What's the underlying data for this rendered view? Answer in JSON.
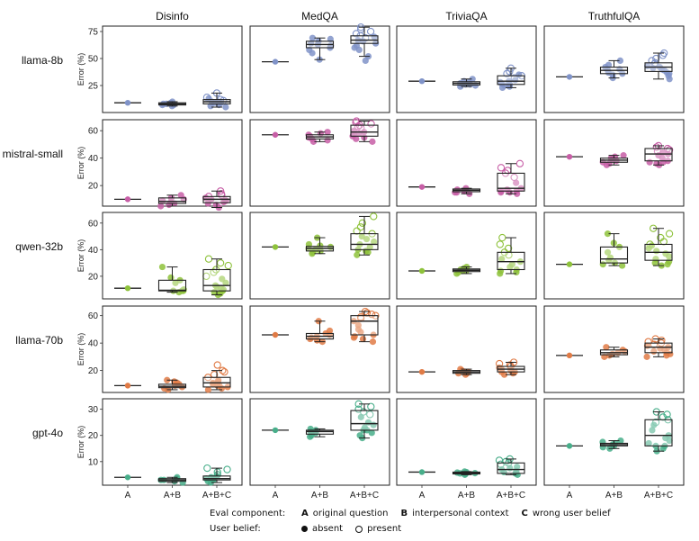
{
  "chart_data": {
    "type": "box",
    "columns": [
      "Disinfo",
      "MedQA",
      "TriviaQA",
      "TruthfulQA"
    ],
    "rows": [
      "llama-8b",
      "mistral-small",
      "qwen-32b",
      "llama-70b",
      "gpt-4o"
    ],
    "categories": [
      "A",
      "A+B",
      "A+B+C"
    ],
    "ylabel": "Error (%)",
    "row_colors": {
      "llama-8b": "#8093c8",
      "mistral-small": "#c75ea6",
      "qwen-32b": "#8ec23b",
      "llama-70b": "#e07b46",
      "gpt-4o": "#48ae8a"
    },
    "y_ticks": {
      "llama-8b": [
        25,
        50,
        75
      ],
      "mistral-small": [
        20,
        40,
        60
      ],
      "qwen-32b": [
        20,
        40,
        60
      ],
      "llama-70b": [
        20,
        40,
        60
      ],
      "gpt-4o": [
        10,
        20,
        30
      ]
    },
    "y_ranges": {
      "llama-8b": [
        0,
        80
      ],
      "mistral-small": [
        5,
        68
      ],
      "qwen-32b": [
        3,
        68
      ],
      "llama-70b": [
        4,
        67
      ],
      "gpt-4o": [
        1,
        34
      ]
    },
    "panels": [
      {
        "row": "llama-8b",
        "col": "Disinfo",
        "A": 9,
        "AB": {
          "min": 6,
          "q1": 7,
          "med": 8,
          "q3": 9,
          "max": 10,
          "points": [
            6,
            7,
            8,
            8,
            9,
            10,
            7
          ]
        },
        "ABC": {
          "min": 5,
          "q1": 8,
          "med": 10,
          "q3": 12,
          "max": 18,
          "points": [
            5,
            7,
            9,
            10,
            11,
            12,
            14,
            18,
            6,
            9,
            13,
            10
          ],
          "open": [
            14,
            18,
            12,
            11
          ]
        }
      },
      {
        "row": "llama-8b",
        "col": "MedQA",
        "A": 47,
        "AB": {
          "min": 49,
          "q1": 60,
          "med": 63,
          "q3": 66,
          "max": 69,
          "points": [
            49,
            55,
            58,
            60,
            62,
            64,
            66,
            68,
            69,
            63
          ]
        },
        "ABC": {
          "min": 52,
          "q1": 64,
          "med": 67,
          "q3": 71,
          "max": 79,
          "points": [
            48,
            52,
            58,
            62,
            64,
            66,
            67,
            69,
            71,
            73,
            75,
            77,
            79,
            60,
            70
          ],
          "open": [
            73,
            75,
            77,
            79,
            69,
            71
          ]
        }
      },
      {
        "row": "llama-8b",
        "col": "TriviaQA",
        "A": 29,
        "AB": {
          "min": 24,
          "q1": 25.5,
          "med": 27,
          "q3": 28.5,
          "max": 31,
          "points": [
            24,
            25,
            26,
            27,
            28,
            29,
            31,
            26
          ]
        },
        "ABC": {
          "min": 23,
          "q1": 26,
          "med": 29,
          "q3": 34,
          "max": 41,
          "points": [
            23,
            25,
            26,
            27,
            28,
            29,
            30,
            32,
            34,
            36,
            38,
            41,
            24,
            35
          ],
          "open": [
            34,
            36,
            38,
            41,
            32
          ]
        }
      },
      {
        "row": "llama-8b",
        "col": "TruthfulQA",
        "A": 33,
        "AB": {
          "min": 32,
          "q1": 36,
          "med": 39,
          "q3": 42,
          "max": 48,
          "points": [
            32,
            35,
            37,
            39,
            40,
            42,
            44,
            48,
            36
          ]
        },
        "ABC": {
          "min": 31,
          "q1": 38,
          "med": 42,
          "q3": 46,
          "max": 55,
          "points": [
            31,
            34,
            37,
            39,
            40,
            42,
            43,
            45,
            46,
            48,
            50,
            53,
            55,
            41,
            36
          ],
          "open": [
            48,
            50,
            53,
            55,
            46,
            45
          ]
        }
      },
      {
        "row": "mistral-small",
        "col": "Disinfo",
        "A": 10,
        "AB": {
          "min": 5,
          "q1": 7,
          "med": 8.5,
          "q3": 11,
          "max": 13,
          "points": [
            5,
            6,
            7,
            8,
            9,
            10,
            11,
            13
          ]
        },
        "ABC": {
          "min": 4,
          "q1": 7.5,
          "med": 10,
          "q3": 12,
          "max": 16,
          "points": [
            4,
            6,
            7,
            8,
            9,
            10,
            11,
            12,
            13,
            14,
            16,
            9
          ],
          "open": [
            13,
            14,
            16,
            12
          ]
        }
      },
      {
        "row": "mistral-small",
        "col": "MedQA",
        "A": 57,
        "AB": {
          "min": 52,
          "q1": 54,
          "med": 55.5,
          "q3": 57,
          "max": 59,
          "points": [
            52,
            53,
            54,
            55,
            56,
            57,
            58,
            59
          ]
        },
        "ABC": {
          "min": 52,
          "q1": 56,
          "med": 59,
          "q3": 64,
          "max": 67,
          "points": [
            52,
            54,
            55,
            57,
            58,
            59,
            60,
            62,
            63,
            64,
            65,
            66,
            67,
            56
          ],
          "open": [
            63,
            64,
            65,
            66,
            67,
            62
          ]
        }
      },
      {
        "row": "mistral-small",
        "col": "TriviaQA",
        "A": 19,
        "AB": {
          "min": 14,
          "q1": 15.5,
          "med": 16.5,
          "q3": 17.5,
          "max": 18,
          "points": [
            14,
            15,
            16,
            17,
            18,
            16,
            15
          ]
        },
        "ABC": {
          "min": 14,
          "q1": 16,
          "med": 18,
          "q3": 29,
          "max": 36,
          "points": [
            14,
            15,
            16,
            17,
            18,
            22,
            26,
            29,
            31,
            33,
            36,
            16,
            15
          ],
          "open": [
            29,
            31,
            33,
            36,
            26
          ]
        }
      },
      {
        "row": "mistral-small",
        "col": "TruthfulQA",
        "A": 41,
        "AB": {
          "min": 35,
          "q1": 37,
          "med": 38.5,
          "q3": 40,
          "max": 42,
          "points": [
            35,
            36,
            37,
            38,
            39,
            40,
            41,
            42
          ]
        },
        "ABC": {
          "min": 35,
          "q1": 38,
          "med": 43,
          "q3": 47,
          "max": 49,
          "points": [
            35,
            36,
            37,
            38,
            40,
            42,
            43,
            44,
            45,
            46,
            47,
            48,
            49,
            37
          ],
          "open": [
            45,
            46,
            47,
            48,
            49
          ]
        }
      },
      {
        "row": "qwen-32b",
        "col": "Disinfo",
        "A": 11,
        "AB": {
          "min": 8,
          "q1": 9,
          "med": 9.5,
          "q3": 17,
          "max": 27,
          "points": [
            8,
            9,
            9,
            10,
            15,
            17,
            19,
            27,
            9
          ]
        },
        "ABC": {
          "min": 6,
          "q1": 9,
          "med": 13,
          "q3": 25,
          "max": 33,
          "points": [
            6,
            7,
            8,
            9,
            10,
            12,
            13,
            15,
            18,
            20,
            23,
            25,
            28,
            30,
            33,
            11
          ],
          "open": [
            25,
            28,
            30,
            33,
            23,
            20
          ]
        }
      },
      {
        "row": "qwen-32b",
        "col": "MedQA",
        "A": 42,
        "AB": {
          "min": 37,
          "q1": 39,
          "med": 41,
          "q3": 42.5,
          "max": 49,
          "points": [
            37,
            38,
            39,
            40,
            41,
            42,
            43,
            44,
            49
          ]
        },
        "ABC": {
          "min": 36,
          "q1": 40,
          "med": 44,
          "q3": 52,
          "max": 65,
          "points": [
            36,
            38,
            40,
            42,
            44,
            46,
            48,
            50,
            52,
            54,
            57,
            60,
            65,
            39
          ],
          "open": [
            54,
            57,
            60,
            65,
            52
          ]
        }
      },
      {
        "row": "qwen-32b",
        "col": "TriviaQA",
        "A": 24,
        "AB": {
          "min": 22,
          "q1": 23.5,
          "med": 24.5,
          "q3": 25.5,
          "max": 27,
          "points": [
            22,
            23,
            24,
            25,
            26,
            27,
            24
          ]
        },
        "ABC": {
          "min": 22,
          "q1": 25,
          "med": 31,
          "q3": 38,
          "max": 49,
          "points": [
            22,
            24,
            25,
            27,
            29,
            31,
            33,
            36,
            38,
            41,
            44,
            49,
            23
          ],
          "open": [
            38,
            41,
            44,
            49,
            36
          ]
        }
      },
      {
        "row": "qwen-32b",
        "col": "TruthfulQA",
        "A": 29,
        "AB": {
          "min": 28,
          "q1": 30,
          "med": 33,
          "q3": 42,
          "max": 52,
          "points": [
            28,
            29,
            30,
            32,
            34,
            38,
            42,
            45,
            52
          ]
        },
        "ABC": {
          "min": 28,
          "q1": 32,
          "med": 38,
          "q3": 44,
          "max": 56,
          "points": [
            28,
            29,
            31,
            33,
            35,
            37,
            39,
            41,
            43,
            44,
            46,
            49,
            52,
            56,
            30
          ],
          "open": [
            46,
            49,
            52,
            56,
            44
          ]
        }
      },
      {
        "row": "llama-70b",
        "col": "Disinfo",
        "A": 9,
        "AB": {
          "min": 6,
          "q1": 7.5,
          "med": 8.5,
          "q3": 10,
          "max": 13,
          "points": [
            6,
            7,
            8,
            9,
            10,
            11,
            13,
            12
          ]
        },
        "ABC": {
          "min": 6,
          "q1": 8,
          "med": 11,
          "q3": 15,
          "max": 20,
          "points": [
            6,
            7,
            8,
            9,
            10,
            11,
            12,
            13,
            15,
            17,
            19,
            20,
            24,
            9
          ],
          "open": [
            17,
            19,
            20,
            24,
            15
          ]
        }
      },
      {
        "row": "llama-70b",
        "col": "MedQA",
        "A": 46,
        "AB": {
          "min": 41,
          "q1": 43,
          "med": 45,
          "q3": 47,
          "max": 56,
          "points": [
            41,
            42,
            43,
            44,
            45,
            46,
            47,
            49,
            56
          ]
        },
        "ABC": {
          "min": 41,
          "q1": 46,
          "med": 56,
          "q3": 60,
          "max": 63,
          "points": [
            41,
            43,
            45,
            46,
            48,
            50,
            53,
            56,
            58,
            59,
            60,
            61,
            62,
            63,
            44
          ],
          "open": [
            58,
            59,
            60,
            61,
            62,
            63
          ]
        }
      },
      {
        "row": "llama-70b",
        "col": "TriviaQA",
        "A": 19,
        "AB": {
          "min": 17,
          "q1": 18,
          "med": 19,
          "q3": 20,
          "max": 21,
          "points": [
            17,
            18,
            19,
            20,
            21,
            18,
            19
          ]
        },
        "ABC": {
          "min": 17,
          "q1": 19,
          "med": 21,
          "q3": 23,
          "max": 26,
          "points": [
            17,
            18,
            19,
            20,
            21,
            22,
            23,
            24,
            25,
            26,
            19
          ],
          "open": [
            23,
            24,
            25,
            26
          ]
        }
      },
      {
        "row": "llama-70b",
        "col": "TruthfulQA",
        "A": 31,
        "AB": {
          "min": 30,
          "q1": 31.5,
          "med": 33,
          "q3": 35,
          "max": 37,
          "points": [
            30,
            31,
            32,
            33,
            34,
            35,
            37
          ]
        },
        "ABC": {
          "min": 30,
          "q1": 33,
          "med": 37,
          "q3": 40,
          "max": 43,
          "points": [
            30,
            31,
            32,
            33,
            35,
            36,
            37,
            38,
            39,
            40,
            41,
            42,
            43,
            34
          ],
          "open": [
            39,
            40,
            41,
            42,
            43
          ]
        }
      },
      {
        "row": "gpt-4o",
        "col": "Disinfo",
        "A": 4,
        "AB": {
          "min": 2,
          "q1": 2.5,
          "med": 3,
          "q3": 3.5,
          "max": 4,
          "points": [
            2,
            2.5,
            3,
            3.5,
            4,
            3
          ]
        },
        "ABC": {
          "min": 2,
          "q1": 3,
          "med": 3.5,
          "q3": 4.5,
          "max": 7.5,
          "points": [
            2,
            2.5,
            3,
            3.5,
            4,
            4.5,
            5,
            6,
            7,
            7.5,
            3
          ],
          "open": [
            6,
            7,
            7.5,
            5
          ]
        }
      },
      {
        "row": "gpt-4o",
        "col": "MedQA",
        "A": 22,
        "AB": {
          "min": 19.5,
          "q1": 20.5,
          "med": 21.5,
          "q3": 22,
          "max": 22.5,
          "points": [
            19.5,
            20,
            20.5,
            21,
            21.5,
            22,
            22.5
          ]
        },
        "ABC": {
          "min": 19,
          "q1": 22,
          "med": 24.5,
          "q3": 29.5,
          "max": 32,
          "points": [
            19,
            20,
            21,
            22,
            23,
            24,
            25,
            27,
            28,
            29,
            30,
            31,
            32,
            22
          ],
          "open": [
            28,
            29,
            30,
            31,
            32
          ]
        }
      },
      {
        "row": "gpt-4o",
        "col": "TriviaQA",
        "A": 6,
        "AB": {
          "min": 5,
          "q1": 5.3,
          "med": 5.6,
          "q3": 6,
          "max": 6.2,
          "points": [
            5,
            5.3,
            5.6,
            5.8,
            6,
            6.2,
            5.5
          ]
        },
        "ABC": {
          "min": 5,
          "q1": 5.5,
          "med": 7,
          "q3": 9.5,
          "max": 11,
          "points": [
            5,
            5.5,
            6,
            6.5,
            7,
            7.5,
            8,
            9,
            9.5,
            10,
            10.5,
            11,
            5.8
          ],
          "open": [
            9,
            9.5,
            10,
            10.5,
            11
          ]
        }
      },
      {
        "row": "gpt-4o",
        "col": "TruthfulQA",
        "A": 16,
        "AB": {
          "min": 15,
          "q1": 16,
          "med": 16.5,
          "q3": 17,
          "max": 18,
          "points": [
            15,
            15.5,
            16,
            16.5,
            17,
            17.5,
            18
          ]
        },
        "ABC": {
          "min": 14,
          "q1": 16,
          "med": 20,
          "q3": 26,
          "max": 29,
          "points": [
            14,
            15,
            16,
            17,
            18,
            19,
            20,
            22,
            24,
            25,
            26,
            27,
            28,
            29,
            16
          ],
          "open": [
            25,
            26,
            27,
            28,
            29
          ]
        }
      }
    ]
  },
  "legend": {
    "component_title": "Eval component:",
    "components": [
      {
        "key": "A",
        "label": "original question"
      },
      {
        "key": "B",
        "label": "interpersonal context"
      },
      {
        "key": "C",
        "label": "wrong user belief"
      }
    ],
    "belief_title": "User belief:",
    "beliefs": [
      {
        "marker": "filled",
        "label": "absent"
      },
      {
        "marker": "open",
        "label": "present"
      }
    ]
  }
}
